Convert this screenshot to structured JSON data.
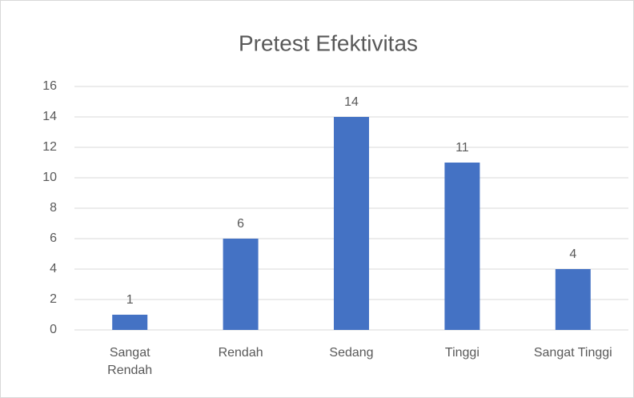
{
  "chart_data": {
    "type": "bar",
    "title": "Pretest Efektivitas",
    "categories": [
      "Sangat Rendah",
      "Rendah",
      "Sedang",
      "Tinggi",
      "Sangat Tinggi"
    ],
    "values": [
      1,
      6,
      14,
      11,
      4
    ],
    "color": "#4472c4",
    "ylim": [
      0,
      16
    ],
    "yticks": [
      0,
      2,
      4,
      6,
      8,
      10,
      12,
      14,
      16
    ],
    "grid": true
  }
}
